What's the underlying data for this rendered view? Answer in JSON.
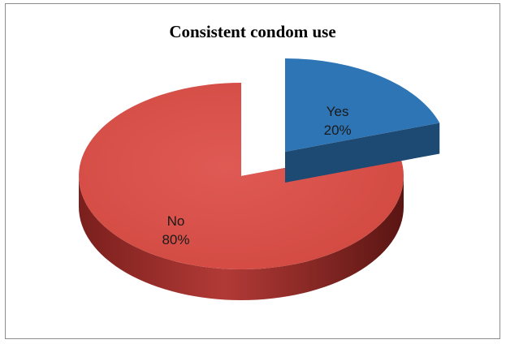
{
  "chart_data": {
    "type": "pie",
    "style": "3d-exploded",
    "title": "Consistent condom use",
    "slices": [
      {
        "label": "Yes",
        "value": 20,
        "value_label": "20%",
        "color": "#2e75b6",
        "side_color": "#1d4a73"
      },
      {
        "label": "No",
        "value": 80,
        "value_label": "80%",
        "color": "#d9534f",
        "side_color": "#8c2522"
      }
    ],
    "legend": "none"
  }
}
